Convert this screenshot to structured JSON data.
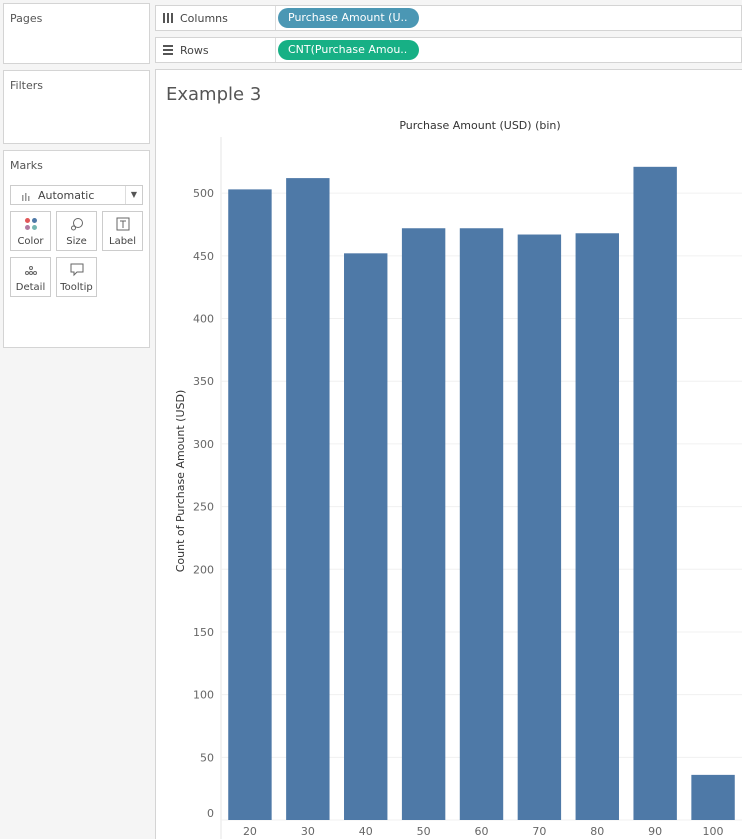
{
  "sidebar": {
    "pages": "Pages",
    "filters": "Filters",
    "marks": "Marks",
    "mark_type": "Automatic",
    "mark_buttons": [
      "Color",
      "Size",
      "Label",
      "Detail",
      "Tooltip"
    ]
  },
  "shelves": {
    "columns": {
      "label": "Columns",
      "pill": "Purchase Amount (U.."
    },
    "rows": {
      "label": "Rows",
      "pill": "CNT(Purchase Amou.."
    }
  },
  "sheet": {
    "title": "Example 3"
  },
  "chart_data": {
    "type": "bar",
    "title": "Purchase Amount (USD) (bin)",
    "y_label": "Count of Purchase Amount (USD)",
    "categories": [
      "20",
      "30",
      "40",
      "50",
      "60",
      "70",
      "80",
      "90",
      "100"
    ],
    "values": [
      503,
      512,
      452,
      472,
      472,
      467,
      468,
      521,
      36
    ],
    "color": "#4e79a7",
    "ylim": [
      0,
      540
    ],
    "yticks": [
      0,
      50,
      100,
      150,
      200,
      250,
      300,
      350,
      400,
      450,
      500
    ],
    "grid": true
  }
}
